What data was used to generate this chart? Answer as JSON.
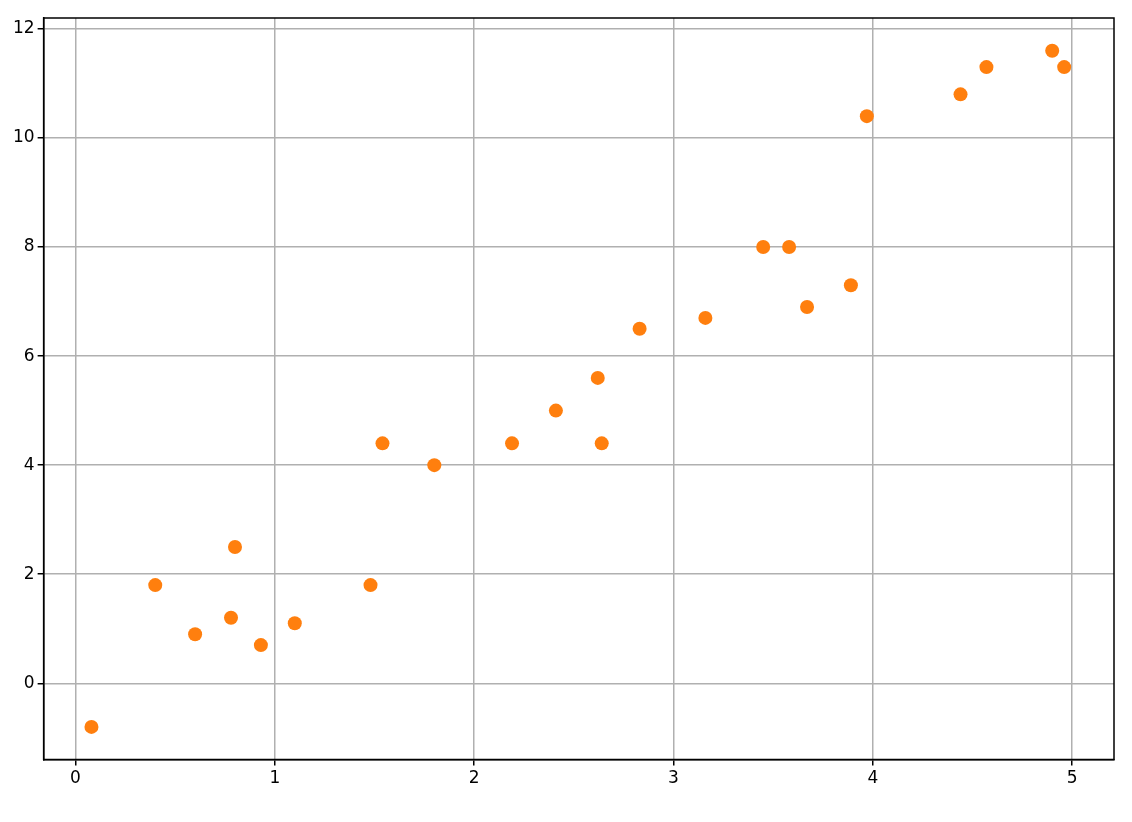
{
  "chart_data": {
    "type": "scatter",
    "x": [
      0.08,
      0.4,
      0.6,
      0.78,
      0.8,
      0.93,
      1.1,
      1.48,
      1.54,
      1.8,
      2.19,
      2.41,
      2.62,
      2.64,
      2.83,
      3.16,
      3.45,
      3.58,
      3.67,
      3.89,
      3.97,
      4.44,
      4.57,
      4.9,
      4.96
    ],
    "values": [
      -0.8,
      1.8,
      0.9,
      1.2,
      2.5,
      0.7,
      1.1,
      1.8,
      4.4,
      4.0,
      4.4,
      5.0,
      5.6,
      4.4,
      6.5,
      6.7,
      8.0,
      8.0,
      6.9,
      7.3,
      10.4,
      10.8,
      11.3,
      11.6,
      11.3
    ],
    "color": "#ff7f0e",
    "marker": "circle",
    "xlim": [
      -0.16,
      5.21
    ],
    "xticks": [
      0,
      1,
      2,
      3,
      4,
      5
    ],
    "ylim": [
      -1.4,
      12.2
    ],
    "yticks": [
      0,
      2,
      4,
      6,
      8,
      10,
      12
    ],
    "grid": true
  }
}
